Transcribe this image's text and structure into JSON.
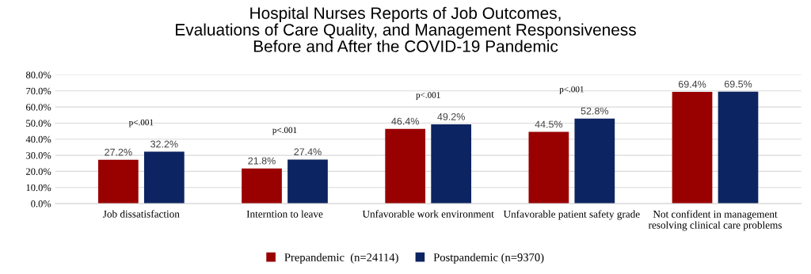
{
  "chart_data": {
    "type": "bar",
    "title": "Hospital Nurses Reports of Job Outcomes,\nEvaluations of Care Quality, and Management Responsiveness\nBefore and After the COVID-19 Pandemic",
    "categories": [
      "Job dissatisfaction",
      "Interntion to leave",
      "Unfavorable work environment",
      "Unfavorable patient safety grade",
      "Not confident in management\nresolving clinical care problems"
    ],
    "series": [
      {
        "name": "Prepandemic  (n=24114)",
        "color": "#990000",
        "values": [
          27.2,
          21.8,
          46.4,
          44.5,
          69.4
        ]
      },
      {
        "name": "Postpandemic (n=9370)",
        "color": "#0c2461",
        "values": [
          32.2,
          27.4,
          49.2,
          52.8,
          69.5
        ]
      }
    ],
    "value_labels": [
      [
        "27.2%",
        "21.8%",
        "46.4%",
        "44.5%",
        "69.4%"
      ],
      [
        "32.2%",
        "27.4%",
        "49.2%",
        "52.8%",
        "69.5%"
      ]
    ],
    "annotations": [
      "p<.001",
      "p<.001",
      "p<.001",
      "p<.001"
    ],
    "ylim": [
      0,
      80
    ],
    "yticks": [
      {
        "value": 0,
        "label": "0.0%"
      },
      {
        "value": 10,
        "label": "10.0%"
      },
      {
        "value": 20,
        "label": "20.0%"
      },
      {
        "value": 30,
        "label": "30.0%"
      },
      {
        "value": 40,
        "label": "40.0%"
      },
      {
        "value": 50,
        "label": "50.0%"
      },
      {
        "value": 60,
        "label": "60.0%"
      },
      {
        "value": 70,
        "label": "70.0%"
      },
      {
        "value": 80,
        "label": "80.0%"
      }
    ],
    "grid": "y",
    "legend": "bottom"
  }
}
